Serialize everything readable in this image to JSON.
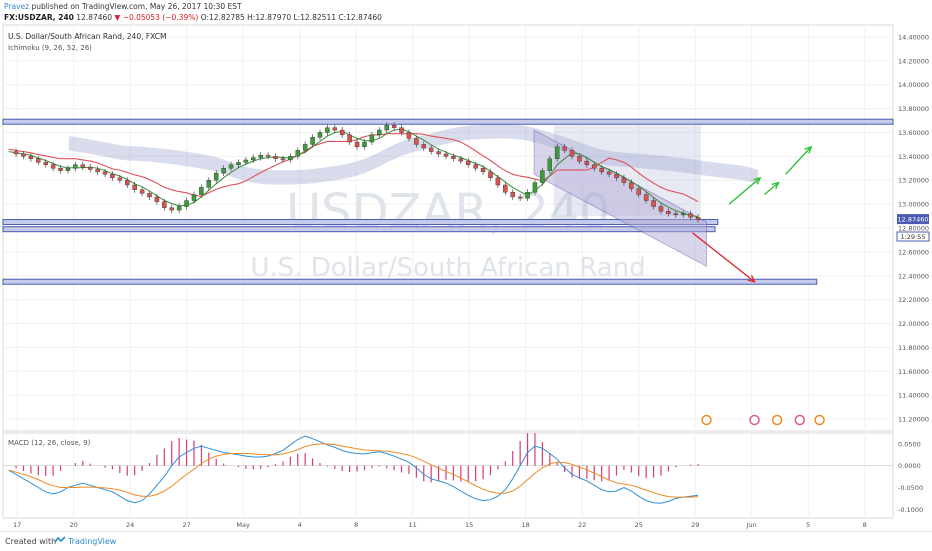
{
  "header": {
    "author": "Pravez",
    "published": "published on TradingView.com, May 26, 2017 10:30 EST",
    "symbol": "FX:USDZAR, 240",
    "last": "12.87460",
    "change": "−0.05053 (−0.39%)",
    "ohlc": "O:12.82785 H:12.87970 L:12.82511 C:12.87460"
  },
  "legend": {
    "title": "U.S. Dollar/South African Rand, 240, FXCM",
    "ichimoku": "Ichimoku (9, 26, 52, 26)",
    "macd": "MACD (12, 26, close, 9)"
  },
  "watermark": {
    "symbol": "USDZAR, 240",
    "name": "U.S. Dollar/South African Rand"
  },
  "price_tags": {
    "last": "12.87460",
    "countdown": "1:29:55"
  },
  "footer": {
    "created_with": "Created with",
    "brand": "TradingView"
  },
  "colors": {
    "up": "#3a9c3a",
    "down": "#d9534f",
    "kijun": "#e0505a",
    "tenkan": "#3c8a3c",
    "cloud": "#9fa8cf",
    "hline": "#4b5bb5",
    "channel": "#6b5bab",
    "arrow_up": "#22c02a",
    "arrow_down": "#e0202a",
    "macd_line": "#2f8fd8",
    "signal_line": "#f08a24",
    "hist": "#d33d7a"
  },
  "chart_data": {
    "type": "candlestick",
    "title": "U.S. Dollar/South African Rand, 240, FXCM",
    "price_ticks": [
      "14.40000",
      "14.20000",
      "14.00000",
      "13.80000",
      "13.60000",
      "13.40000",
      "13.20000",
      "13.00000",
      "12.80000",
      "12.60000",
      "12.40000",
      "12.20000",
      "12.00000",
      "11.80000",
      "11.60000",
      "11.40000",
      "11.20000"
    ],
    "price_range": [
      11.1,
      14.5
    ],
    "x_ticks": [
      "17",
      "20",
      "24",
      "27",
      "May",
      "4",
      "8",
      "11",
      "15",
      "18",
      "22",
      "25",
      "29",
      "Jun",
      "5",
      "8"
    ],
    "x_tick_pos": [
      2,
      4,
      6,
      8,
      10,
      12,
      14,
      16,
      18,
      20,
      22,
      24,
      26,
      28,
      30,
      32
    ],
    "x_range": [
      1.5,
      33
    ],
    "horizontal_levels": [
      13.69,
      12.85,
      12.79,
      12.35
    ],
    "channel": {
      "upper": [
        [
          20.3,
          13.62
        ],
        [
          26.4,
          12.85
        ]
      ],
      "lower": [
        [
          20.3,
          13.25
        ],
        [
          26.4,
          12.48
        ]
      ]
    },
    "closes": [
      13.44,
      13.42,
      13.4,
      13.38,
      13.35,
      13.33,
      13.3,
      13.28,
      13.3,
      13.33,
      13.31,
      13.29,
      13.27,
      13.25,
      13.22,
      13.2,
      13.16,
      13.12,
      13.09,
      13.06,
      13.02,
      12.97,
      12.95,
      12.98,
      13.03,
      13.08,
      13.14,
      13.2,
      13.26,
      13.3,
      13.33,
      13.35,
      13.37,
      13.39,
      13.41,
      13.4,
      13.38,
      13.37,
      13.4,
      13.45,
      13.5,
      13.56,
      13.6,
      13.64,
      13.62,
      13.58,
      13.52,
      13.48,
      13.52,
      13.58,
      13.62,
      13.66,
      13.64,
      13.6,
      13.55,
      13.5,
      13.47,
      13.44,
      13.42,
      13.4,
      13.38,
      13.36,
      13.33,
      13.3,
      13.27,
      13.22,
      13.16,
      13.1,
      13.06,
      13.05,
      13.1,
      13.18,
      13.28,
      13.38,
      13.48,
      13.45,
      13.4,
      13.36,
      13.33,
      13.3,
      13.27,
      13.25,
      13.22,
      13.18,
      13.13,
      13.08,
      13.03,
      12.98,
      12.94,
      12.92,
      12.91,
      12.92,
      12.89,
      12.87
    ],
    "macd_ticks": [
      "0.0500",
      "0.0000",
      "-0.0500",
      "-0.1000"
    ],
    "macd_range": [
      -0.12,
      0.075
    ],
    "macd": [
      -0.01,
      -0.02,
      -0.03,
      -0.04,
      -0.05,
      -0.06,
      -0.065,
      -0.06,
      -0.05,
      -0.045,
      -0.04,
      -0.045,
      -0.05,
      -0.055,
      -0.06,
      -0.07,
      -0.08,
      -0.085,
      -0.08,
      -0.065,
      -0.045,
      -0.025,
      0.0,
      0.02,
      0.03,
      0.04,
      0.045,
      0.04,
      0.035,
      0.03,
      0.028,
      0.025,
      0.022,
      0.02,
      0.02,
      0.022,
      0.028,
      0.035,
      0.048,
      0.06,
      0.068,
      0.062,
      0.055,
      0.048,
      0.042,
      0.035,
      0.03,
      0.028,
      0.027,
      0.03,
      0.032,
      0.028,
      0.022,
      0.015,
      0.008,
      -0.005,
      -0.02,
      -0.03,
      -0.035,
      -0.04,
      -0.048,
      -0.058,
      -0.068,
      -0.076,
      -0.08,
      -0.078,
      -0.07,
      -0.055,
      -0.03,
      0.0,
      0.03,
      0.045,
      0.04,
      0.028,
      0.015,
      -0.005,
      -0.02,
      -0.028,
      -0.035,
      -0.045,
      -0.055,
      -0.06,
      -0.058,
      -0.05,
      -0.058,
      -0.07,
      -0.08,
      -0.085,
      -0.086,
      -0.082,
      -0.075,
      -0.072,
      -0.07,
      -0.068
    ],
    "signal": [
      -0.01,
      -0.015,
      -0.02,
      -0.025,
      -0.032,
      -0.04,
      -0.046,
      -0.05,
      -0.05,
      -0.05,
      -0.049,
      -0.049,
      -0.05,
      -0.051,
      -0.053,
      -0.056,
      -0.061,
      -0.067,
      -0.07,
      -0.07,
      -0.066,
      -0.058,
      -0.047,
      -0.033,
      -0.02,
      -0.008,
      0.005,
      0.015,
      0.022,
      0.026,
      0.028,
      0.028,
      0.028,
      0.027,
      0.026,
      0.025,
      0.025,
      0.027,
      0.031,
      0.037,
      0.044,
      0.048,
      0.05,
      0.05,
      0.048,
      0.045,
      0.042,
      0.039,
      0.036,
      0.035,
      0.034,
      0.033,
      0.031,
      0.028,
      0.024,
      0.018,
      0.01,
      0.002,
      -0.006,
      -0.013,
      -0.02,
      -0.028,
      -0.037,
      -0.046,
      -0.054,
      -0.06,
      -0.063,
      -0.063,
      -0.058,
      -0.047,
      -0.032,
      -0.017,
      -0.005,
      0.004,
      0.008,
      0.007,
      0.003,
      -0.003,
      -0.01,
      -0.017,
      -0.025,
      -0.033,
      -0.039,
      -0.042,
      -0.045,
      -0.05,
      -0.056,
      -0.062,
      -0.067,
      -0.071,
      -0.072,
      -0.072,
      -0.072,
      -0.071
    ]
  }
}
